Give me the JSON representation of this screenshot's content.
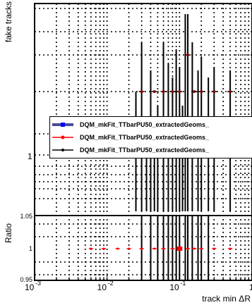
{
  "chart_data": [
    {
      "type": "scatter",
      "panel": "top",
      "ylabel": "fake tracks",
      "xscale": "log",
      "yscale": "log",
      "xlim": [
        0.001,
        1
      ],
      "x_ticks": [
        "10^-3",
        "10^-2",
        "10^-1",
        "1"
      ],
      "y_tick_labels": [
        "1"
      ],
      "grid": true,
      "legend_position": "center-right",
      "series": [
        {
          "name": "DQM_mkFit_TTbarPU50_extractedGeoms_",
          "color": "#0000ff",
          "marker": "square",
          "x": [],
          "y": []
        },
        {
          "name": "DQM_mkFit_TTbarPU50_extractedGeoms_",
          "color": "#ff0000",
          "marker": "circle",
          "x": [],
          "y": []
        },
        {
          "name": "DQM_mkFit_TTbarPU50_extractedGeoms_",
          "color": "#000000",
          "marker": "circle",
          "x": [
            0.03,
            0.045,
            0.06,
            0.08,
            0.1,
            0.13,
            0.16,
            0.2,
            0.3,
            0.5
          ],
          "y": [
            2,
            2,
            2,
            2,
            2,
            3,
            2,
            2,
            2,
            2
          ]
        }
      ]
    },
    {
      "type": "scatter",
      "panel": "bottom",
      "ylabel": "Ratio",
      "xlabel": "track min ΔR",
      "xscale": "log",
      "xlim": [
        0.001,
        1
      ],
      "ylim": [
        0.95,
        1.05
      ],
      "y_ticks": [
        "0.95",
        "1",
        "1.05"
      ],
      "x_ticks": [
        "10^-3",
        "10^-2",
        "10^-1",
        "1"
      ],
      "grid": true,
      "series": [
        {
          "name": "ratio",
          "color": "#ff0000",
          "x": [
            0.006,
            0.009,
            0.014,
            0.02,
            0.03,
            0.045,
            0.06,
            0.08,
            0.1,
            0.13,
            0.16,
            0.2,
            0.3,
            0.5
          ],
          "y": [
            1,
            1,
            1,
            1,
            1,
            1,
            1,
            1,
            1,
            1,
            1,
            1,
            1,
            1
          ]
        }
      ]
    }
  ],
  "labels": {
    "top_ylabel": "fake tracks",
    "bottom_ylabel": "Ratio",
    "xlabel": "track min ΔR",
    "legend": [
      "DQM_mkFit_TTbarPU50_extractedGeoms_",
      "DQM_mkFit_TTbarPU50_extractedGeoms_",
      "DQM_mkFit_TTbarPU50_extractedGeoms_"
    ]
  }
}
